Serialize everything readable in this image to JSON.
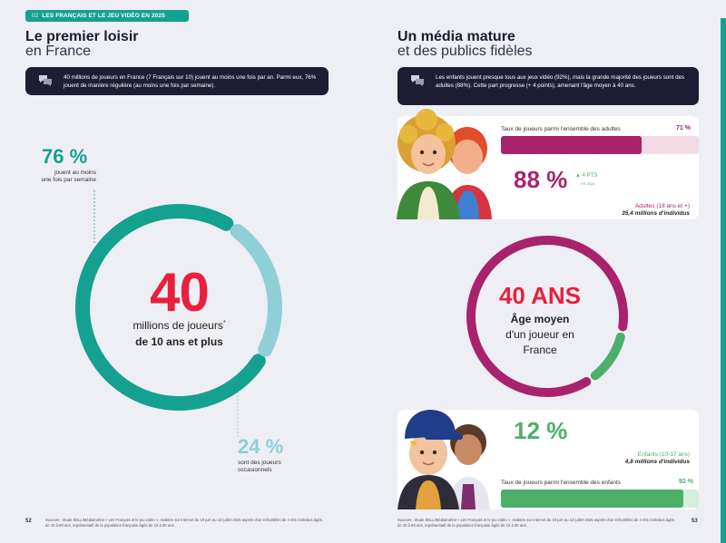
{
  "header": {
    "section_number": "02",
    "section_title": "LES FRANÇAIS ET LE JEU VIDÉO EN 2025"
  },
  "left": {
    "title": "Le premier loisir",
    "subtitle": "en France",
    "callout": "40 millions de joueurs en France (7 Français sur 10) jouent au moins une fois par an. Parmi eux, 76% jouent de manière régulière (au moins une fois par semaine).",
    "regular": {
      "value": "76 %",
      "label_l1": "jouent au moins",
      "label_l2": "une fois par semaine",
      "fraction": 0.76
    },
    "occasional": {
      "value": "24 %",
      "label_l1": "sont des joueurs",
      "label_l2": "occasionnels",
      "fraction": 0.24
    },
    "center": {
      "value": "40",
      "line1": "millions de joueurs",
      "asterisk": "*",
      "line2": "de 10 ans et plus"
    },
    "page_number": "52",
    "footer": "Sources : étude SELL/Médiamétrie « Les Français et le jeu vidéo », réalisée sur Internet du 19 juin au 13 juillet 2025 auprès d'un échantillon de 4 001 individus âgés de 10 à 80 ans, représentatif de la population française âgée de 10 à 80 ans."
  },
  "right": {
    "title": "Un média mature",
    "subtitle": "et des publics fidèles",
    "callout": "Les enfants jouent presque tous aux jeux vidéo (92%), mais la grande majorité des joueurs sont des adultes (88%). Cette part progresse (+ 4 points), amenant l'âge moyen à 40 ans.",
    "adults": {
      "bar_label": "Taux de joueurs parmi l'ensemble des adultes",
      "bar_value": "71 %",
      "bar_fraction": 0.71,
      "share": "88 %",
      "trend": "▲ 4 PTS",
      "trend_ref": "VS 2024",
      "group_label": "Adultes (18 ans et +)",
      "group_count": "35,4 millions d'individus"
    },
    "age": {
      "value": "40 ANS",
      "line1": "Âge moyen",
      "line2": "d'un joueur en",
      "line3": "France",
      "adult_share": 0.88
    },
    "children": {
      "share": "12 %",
      "group_label": "Enfants (10-17 ans)",
      "group_count": "4,8 millions d'individus",
      "bar_label": "Taux de joueurs parmi l'ensemble des enfants",
      "bar_value": "92 %",
      "bar_fraction": 0.92
    },
    "page_number": "53",
    "footer": "Sources : étude SELL/Médiamétrie « Les Français et le jeu vidéo », réalisée sur Internet du 19 juin au 13 juillet 2025 auprès d'un échantillon de 4 001 individus âgés de 10 à 80 ans, représentatif de la population française âgée de 10 à 80 ans."
  },
  "colors": {
    "teal": "#15a18f",
    "light_teal": "#8fcfd6",
    "magenta": "#a8236c",
    "light_magenta": "#f3dbe6",
    "green": "#4caf6a",
    "red": "#e8203c",
    "dark": "#1e1d33"
  },
  "icons": {
    "callout": "speech-bubbles-icon"
  }
}
